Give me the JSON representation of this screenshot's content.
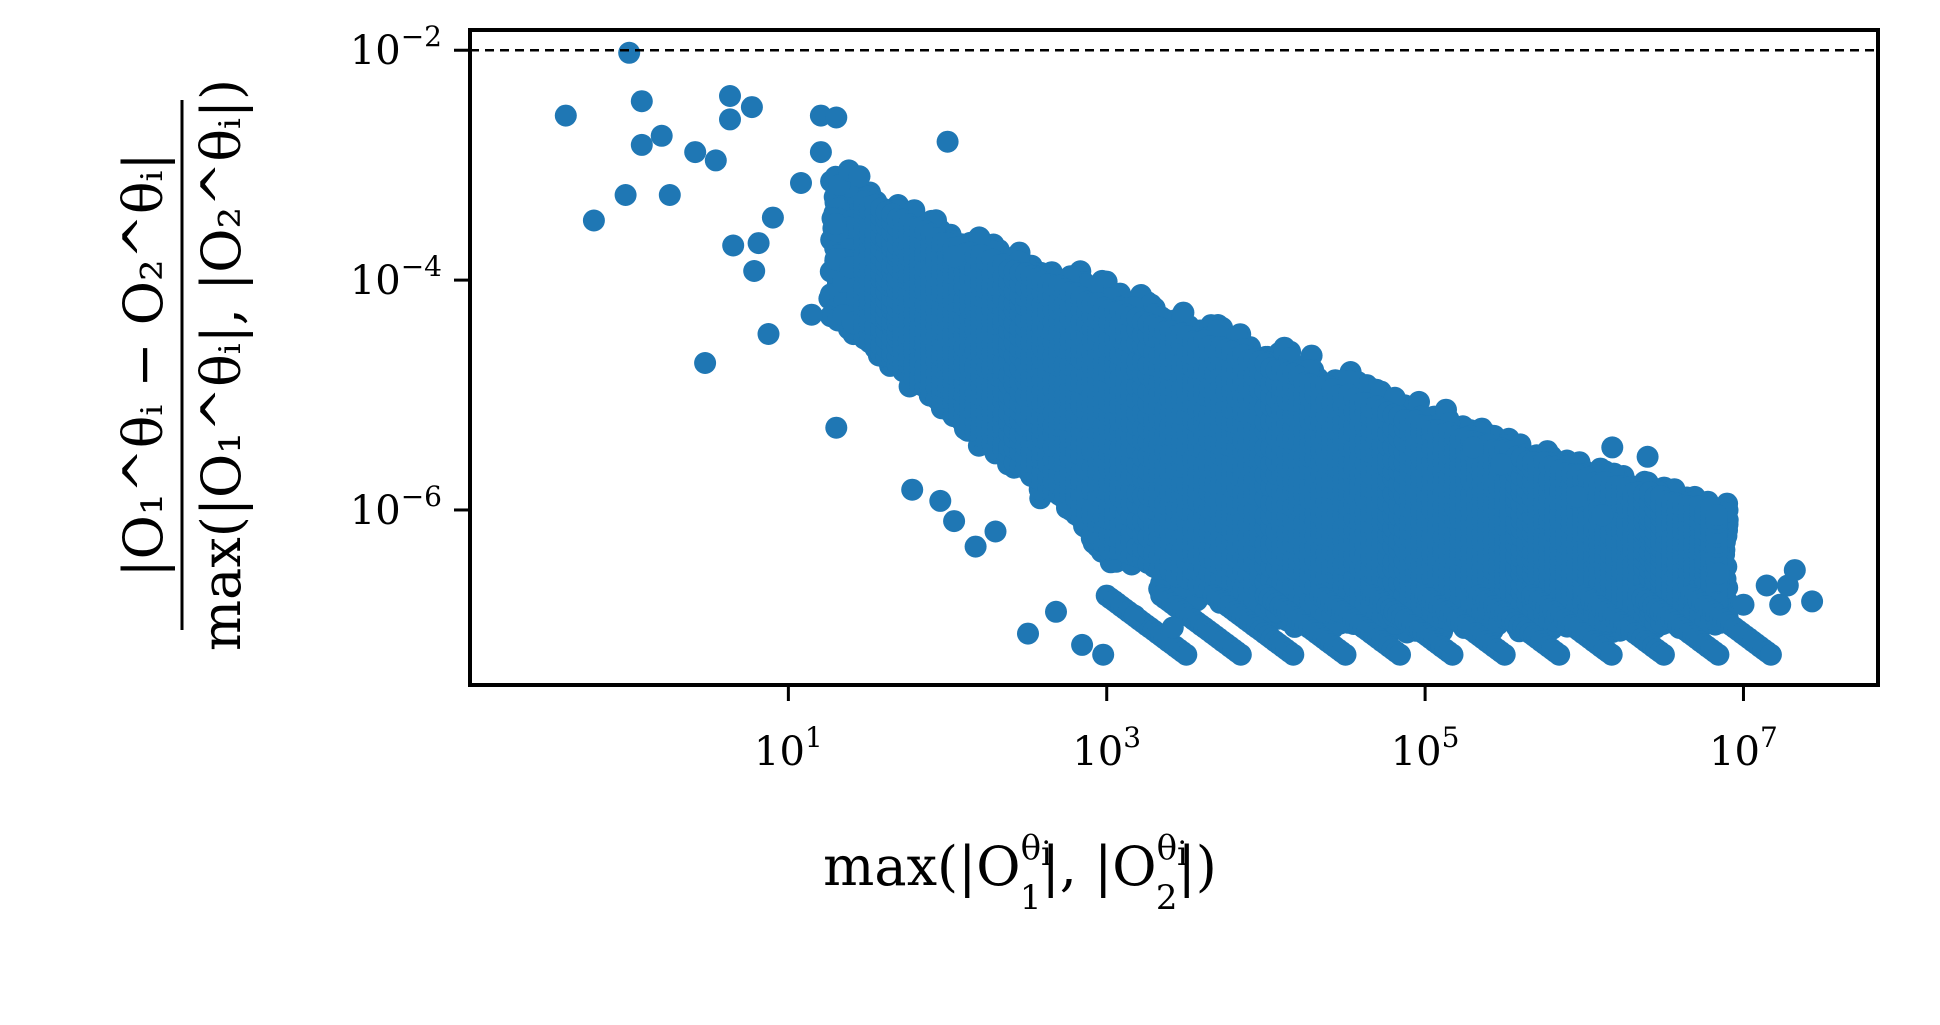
{
  "chart_data": {
    "type": "scatter",
    "title": "",
    "x_scale": "log",
    "y_scale": "log",
    "xlim": [
      0.1,
      70000000
    ],
    "ylim": [
      3e-08,
      0.015
    ],
    "series_color": "#1f77b4",
    "reference_line": {
      "y": 0.01,
      "style": "dashed",
      "color": "#000000"
    },
    "xlabel": {
      "prefix": "max(|O",
      "sup1": "θ",
      "subsup1": "i",
      "sub1": "1",
      "mid": "|, |O",
      "sup2": "θ",
      "subsup2": "i",
      "sub2": "2",
      "suffix": "|)"
    },
    "ylabel": {
      "numerator": "|O₁^θᵢ − O₂^θᵢ|",
      "denominator": "max(|O₁^θᵢ|, |O₂^θᵢ|)"
    },
    "x_ticks": [
      {
        "base": "10",
        "exp": "1",
        "value": 10
      },
      {
        "base": "10",
        "exp": "3",
        "value": 1000
      },
      {
        "base": "10",
        "exp": "5",
        "value": 100000
      },
      {
        "base": "10",
        "exp": "7",
        "value": 10000000
      }
    ],
    "y_ticks": [
      {
        "base": "10",
        "exp": "−2",
        "value": 0.01
      },
      {
        "base": "10",
        "exp": "−4",
        "value": 0.0001
      },
      {
        "base": "10",
        "exp": "−6",
        "value": 1e-06
      }
    ],
    "outlier_points": [
      [
        0.4,
        0.0027
      ],
      [
        1.0,
        0.0095
      ],
      [
        1.2,
        0.0036
      ],
      [
        1.2,
        0.0015
      ],
      [
        1.6,
        0.0018
      ],
      [
        0.6,
        0.00033
      ],
      [
        0.95,
        0.00055
      ],
      [
        1.8,
        0.00055
      ],
      [
        2.6,
        0.0013
      ],
      [
        4.3,
        0.004
      ],
      [
        4.3,
        0.0025
      ],
      [
        5.9,
        0.0032
      ],
      [
        3.5,
        0.0011
      ],
      [
        4.5,
        0.0002
      ],
      [
        6.1,
        0.00012
      ],
      [
        6.5,
        0.00021
      ],
      [
        3.0,
        1.9e-05
      ],
      [
        7.5,
        3.4e-05
      ],
      [
        16,
        0.0027
      ],
      [
        20,
        0.0026
      ],
      [
        16,
        0.0013
      ],
      [
        100,
        0.0016
      ],
      [
        14,
        5e-05
      ],
      [
        8,
        0.00035
      ],
      [
        12,
        0.0007
      ],
      [
        24,
        0.0009
      ],
      [
        28,
        0.0008
      ],
      [
        110,
        0.00016
      ],
      [
        20,
        5.2e-06
      ],
      [
        60,
        1.5e-06
      ],
      [
        90,
        1.2e-06
      ],
      [
        110,
        8e-07
      ],
      [
        150,
        4.8e-07
      ],
      [
        200,
        6.5e-07
      ],
      [
        320,
        8.4e-08
      ],
      [
        480,
        1.3e-07
      ],
      [
        700,
        6.7e-08
      ],
      [
        950,
        5.5e-08
      ],
      [
        1500,
        1.2e-07
      ],
      [
        2600,
        9.5e-08
      ],
      [
        14000000,
        2.2e-07
      ],
      [
        17000000,
        1.5e-07
      ],
      [
        19000000,
        2.2e-07
      ],
      [
        21000000,
        3e-07
      ],
      [
        27000000,
        1.6e-07
      ],
      [
        10000000,
        1.5e-07
      ],
      [
        7000000,
        2.8e-07
      ],
      [
        2500000,
        2.9e-06
      ],
      [
        1500000,
        3.5e-06
      ],
      [
        900000,
        1.3e-06
      ],
      [
        1300000,
        9e-07
      ],
      [
        300000,
        2.5e-06
      ],
      [
        200000,
        3.5e-06
      ]
    ],
    "cloud": {
      "description_of_density": "dense band of points spanning roughly x 10^1.3–10^6.9",
      "upper_edge": [
        [
          15,
          0.0011
        ],
        [
          100,
          0.00032
        ],
        [
          1000,
          0.00011
        ],
        [
          10000,
          3.5e-05
        ],
        [
          100000,
          9e-06
        ],
        [
          1000000,
          2.8e-06
        ],
        [
          8000000,
          1.2e-06
        ]
      ],
      "lower_edge": [
        [
          15,
          6e-05
        ],
        [
          100,
          5.5e-06
        ],
        [
          500,
          9e-07
        ],
        [
          1000,
          3e-07
        ],
        [
          10000,
          8.5e-08
        ],
        [
          100000,
          8e-08
        ],
        [
          1000000,
          8e-08
        ],
        [
          8000000,
          9e-08
        ]
      ],
      "stripe_starts": [
        1000,
        2200,
        4700,
        10000,
        22000,
        47000,
        100000,
        220000,
        470000,
        1000000,
        2200000,
        4700000
      ],
      "stripe_y_top": 1.8e-07,
      "stripe_y_bottom": 5.5e-08
    }
  }
}
